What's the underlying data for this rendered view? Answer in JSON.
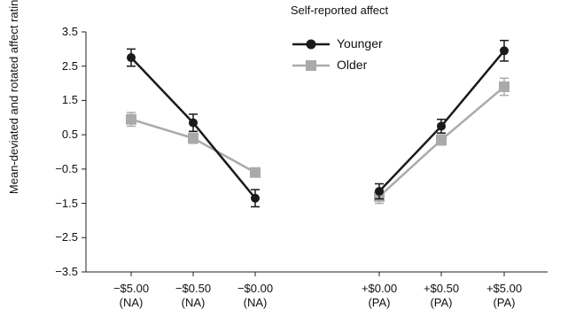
{
  "chart_data": {
    "type": "line",
    "title": "Self-reported affect",
    "ylabel": "Mean-deviated and rotated affect ratings",
    "ylim": [
      -3.5,
      3.5
    ],
    "yticks": [
      "3.5",
      "2.5",
      "1.5",
      "0.5",
      "−0.5",
      "−1.5",
      "−2.5",
      "−3.5"
    ],
    "ytick_values": [
      3.5,
      2.5,
      1.5,
      0.5,
      -0.5,
      -1.5,
      -2.5,
      -3.5
    ],
    "categories": [
      {
        "line1": "−$5.00",
        "line2": "(NA)"
      },
      {
        "line1": "−$0.50",
        "line2": "(NA)"
      },
      {
        "line1": "−$0.00",
        "line2": "(NA)"
      },
      {
        "line1": "+$0.00",
        "line2": "(PA)"
      },
      {
        "line1": "+$0.50",
        "line2": "(PA)"
      },
      {
        "line1": "+$5.00",
        "line2": "(PA)"
      }
    ],
    "segments": [
      [
        0,
        1,
        2
      ],
      [
        3,
        4,
        5
      ]
    ],
    "legend_placement": "top-center",
    "grid": false,
    "series": [
      {
        "name": "Younger",
        "color": "#1a1a1a",
        "marker": "circle",
        "values": [
          2.75,
          0.85,
          -1.35,
          -1.15,
          0.75,
          2.95
        ],
        "errors": [
          0.25,
          0.25,
          0.25,
          0.22,
          0.2,
          0.3
        ]
      },
      {
        "name": "Older",
        "color": "#aaaaaa",
        "marker": "square",
        "values": [
          0.95,
          0.4,
          -0.6,
          -1.3,
          0.35,
          1.9
        ],
        "errors": [
          0.2,
          0.15,
          0.12,
          0.2,
          0.15,
          0.25
        ]
      }
    ]
  }
}
